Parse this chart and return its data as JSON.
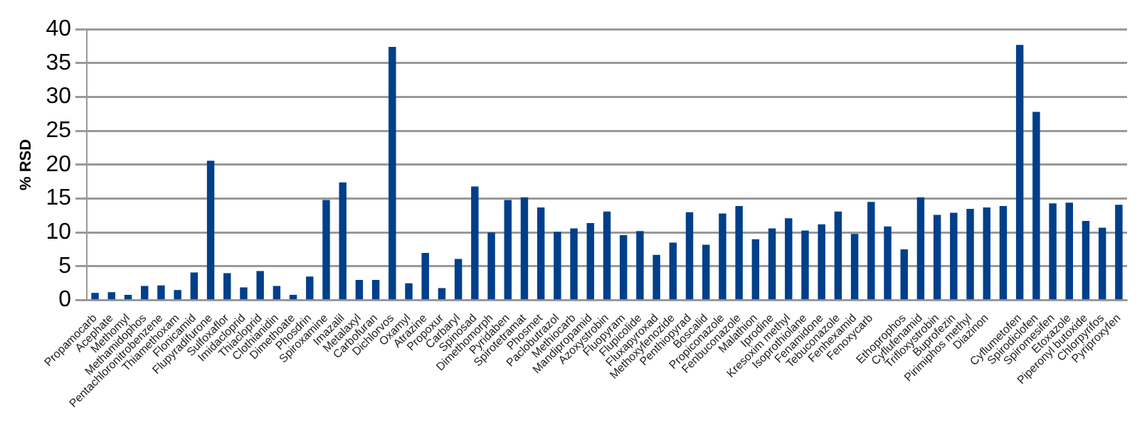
{
  "chart_data": {
    "type": "bar",
    "ylabel": "% RSD",
    "categories": [
      "Propamocarb",
      "Acephate",
      "Methomyl",
      "Methamidophos",
      "Pentachloronitrobenzene",
      "Thiamethoxam",
      "Flonicamid",
      "Flupyradifurone",
      "Sulfoxaflor",
      "Imidacloprid",
      "Thiacloprid",
      "Clothianidin",
      "Dimethoate",
      "Phosdrin",
      "Spiroxamine",
      "Imazalil",
      "Metalaxyl",
      "Carbofuran",
      "Dichlorvos",
      "Oxamyl",
      "Atrazine",
      "Propoxur",
      "Carbaryl",
      "Spinosad",
      "Dimethomorph",
      "Pyridaben",
      "Spirotetramat",
      "Phosmet",
      "Paclobutrazol",
      "Methiocarb",
      "Mandipropamid",
      "Azoxystrobin",
      "Fluopyram",
      "Flupicolide",
      "Fluxapyroxad",
      "Methoxyfenozide",
      "Penthiopyrad",
      "Boscalid",
      "Propiconazole",
      "Fenbuconazole",
      "Malathion",
      "Iprodine",
      "Kresoxim methyl",
      "Isoprothiolane",
      "Fenamidone",
      "Tebuconazole",
      "Fenhexamid",
      "Fenoxycarb",
      null,
      "Ethoprophos",
      "Cyflufenamid",
      "Trifloxystrobin",
      "Buprofezin",
      "Pirimiphos methyl",
      "Diazinon",
      null,
      "Cyflumetofen",
      "Spirodiclofen",
      "Spiromesifen",
      "Etoxazole",
      "Piperonyl butoxide",
      "Chlorpyrifos",
      "Pyriproxyfen"
    ],
    "values": [
      1.1,
      1.2,
      0.8,
      2.1,
      2.2,
      1.5,
      4.1,
      20.6,
      4.0,
      1.9,
      4.3,
      2.1,
      0.8,
      3.5,
      14.8,
      17.4,
      3.0,
      3.0,
      37.4,
      2.5,
      7.0,
      1.8,
      6.1,
      16.8,
      10.0,
      14.8,
      15.2,
      13.7,
      10.1,
      10.6,
      11.4,
      13.1,
      9.6,
      10.2,
      6.7,
      8.5,
      13.0,
      8.2,
      12.8,
      13.9,
      9.0,
      10.6,
      12.1,
      10.3,
      11.2,
      13.1,
      9.8,
      14.5,
      10.9,
      7.5,
      15.2,
      12.6,
      12.9,
      13.5,
      13.7,
      13.9,
      37.7,
      27.8,
      14.3,
      14.4,
      11.7,
      10.7,
      14.1
    ],
    "color": "#003f8a",
    "ylim": [
      0,
      40
    ],
    "yticks": [
      0,
      5,
      10,
      15,
      20,
      25,
      30,
      35,
      40
    ],
    "grid": "y",
    "legend": false
  }
}
